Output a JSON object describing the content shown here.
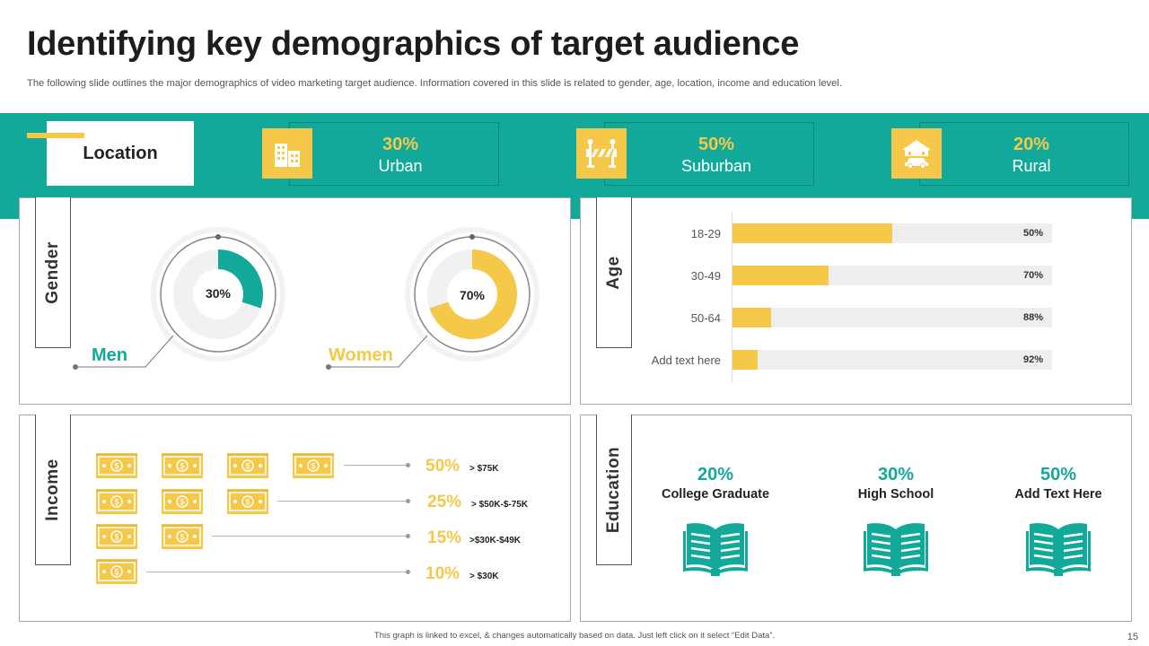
{
  "title": "Identifying key demographics of target audience",
  "subtitle": "The following slide outlines the major demographics of video marketing target audience. Information covered in this slide is related to gender, age, location, income and education level.",
  "location": {
    "label": "Location",
    "stats": [
      {
        "pct": "30%",
        "label": "Urban",
        "icon": "city-buildings-icon"
      },
      {
        "pct": "50%",
        "label": "Suburban",
        "icon": "road-barrier-icon"
      },
      {
        "pct": "20%",
        "label": "Rural",
        "icon": "farmhouse-car-icon"
      }
    ]
  },
  "gender": {
    "label": "Gender",
    "men": {
      "label": "Men",
      "pct_text": "30%",
      "value": 0.3
    },
    "women": {
      "label": "Women",
      "pct_text": "70%",
      "value": 0.7
    }
  },
  "age": {
    "label": "Age",
    "rows": [
      {
        "label": "18-29",
        "value_text": "50%",
        "fill": 0.5
      },
      {
        "label": "30-49",
        "value_text": "70%",
        "fill": 0.3
      },
      {
        "label": "50-64",
        "value_text": "88%",
        "fill": 0.12
      },
      {
        "label": "Add text here",
        "value_text": "92%",
        "fill": 0.08
      }
    ]
  },
  "income": {
    "label": "Income",
    "rows": [
      {
        "pct": "50%",
        "range": "> $75K",
        "bills": 4
      },
      {
        "pct": "25%",
        "range": "> $50K-$-75K",
        "bills": 3
      },
      {
        "pct": "15%",
        "range": ">$30K-$49K",
        "bills": 2
      },
      {
        "pct": "10%",
        "range": "> $30K",
        "bills": 1
      }
    ]
  },
  "education": {
    "label": "Education",
    "items": [
      {
        "pct": "20%",
        "label": "College Graduate"
      },
      {
        "pct": "30%",
        "label": "High School"
      },
      {
        "pct": "50%",
        "label": "Add  Text Here"
      }
    ]
  },
  "footer": "This graph is linked to excel, & changes automatically  based on data. Just left click on it select “Edit Data”.",
  "page_number": "15",
  "colors": {
    "teal": "#12a99b",
    "yellow": "#f6c84a",
    "track": "#eeeeee"
  }
}
